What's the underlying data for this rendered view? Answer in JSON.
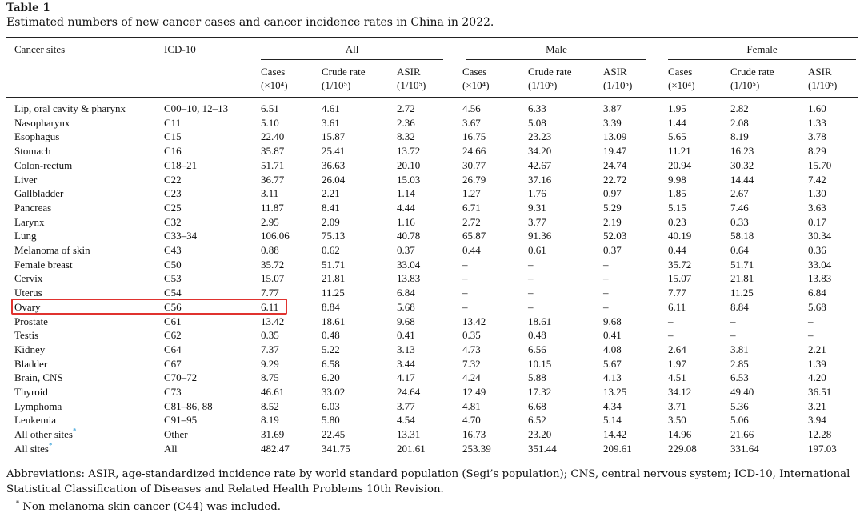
{
  "table": {
    "label": "Table 1",
    "caption": "Estimated numbers of new cancer cases and cancer incidence rates in China in 2022.",
    "col_site": "Cancer sites",
    "col_icd": "ICD-10",
    "groups": [
      "All",
      "Male",
      "Female"
    ],
    "sub_headers": [
      {
        "line1": "Cases",
        "line2": "(×10⁴)"
      },
      {
        "line1": "Crude rate",
        "line2": "(1/10⁵)"
      },
      {
        "line1": "ASIR",
        "line2": "(1/10⁵)"
      }
    ],
    "rows": [
      {
        "site": "Lip, oral cavity & pharynx",
        "icd": "C00–10, 12–13",
        "v": [
          "6.51",
          "4.61",
          "2.72",
          "4.56",
          "6.33",
          "3.87",
          "1.95",
          "2.82",
          "1.60"
        ]
      },
      {
        "site": "Nasopharynx",
        "icd": "C11",
        "v": [
          "5.10",
          "3.61",
          "2.36",
          "3.67",
          "5.08",
          "3.39",
          "1.44",
          "2.08",
          "1.33"
        ]
      },
      {
        "site": "Esophagus",
        "icd": "C15",
        "v": [
          "22.40",
          "15.87",
          "8.32",
          "16.75",
          "23.23",
          "13.09",
          "5.65",
          "8.19",
          "3.78"
        ]
      },
      {
        "site": "Stomach",
        "icd": "C16",
        "v": [
          "35.87",
          "25.41",
          "13.72",
          "24.66",
          "34.20",
          "19.47",
          "11.21",
          "16.23",
          "8.29"
        ]
      },
      {
        "site": "Colon-rectum",
        "icd": "C18–21",
        "v": [
          "51.71",
          "36.63",
          "20.10",
          "30.77",
          "42.67",
          "24.74",
          "20.94",
          "30.32",
          "15.70"
        ]
      },
      {
        "site": "Liver",
        "icd": "C22",
        "v": [
          "36.77",
          "26.04",
          "15.03",
          "26.79",
          "37.16",
          "22.72",
          "9.98",
          "14.44",
          "7.42"
        ]
      },
      {
        "site": "Gallbladder",
        "icd": "C23",
        "v": [
          "3.11",
          "2.21",
          "1.14",
          "1.27",
          "1.76",
          "0.97",
          "1.85",
          "2.67",
          "1.30"
        ]
      },
      {
        "site": "Pancreas",
        "icd": "C25",
        "v": [
          "11.87",
          "8.41",
          "4.44",
          "6.71",
          "9.31",
          "5.29",
          "5.15",
          "7.46",
          "3.63"
        ]
      },
      {
        "site": "Larynx",
        "icd": "C32",
        "v": [
          "2.95",
          "2.09",
          "1.16",
          "2.72",
          "3.77",
          "2.19",
          "0.23",
          "0.33",
          "0.17"
        ]
      },
      {
        "site": "Lung",
        "icd": "C33–34",
        "v": [
          "106.06",
          "75.13",
          "40.78",
          "65.87",
          "91.36",
          "52.03",
          "40.19",
          "58.18",
          "30.34"
        ]
      },
      {
        "site": "Melanoma of skin",
        "icd": "C43",
        "v": [
          "0.88",
          "0.62",
          "0.37",
          "0.44",
          "0.61",
          "0.37",
          "0.44",
          "0.64",
          "0.36"
        ]
      },
      {
        "site": "Female breast",
        "icd": "C50",
        "v": [
          "35.72",
          "51.71",
          "33.04",
          "–",
          "–",
          "–",
          "35.72",
          "51.71",
          "33.04"
        ]
      },
      {
        "site": "Cervix",
        "icd": "C53",
        "v": [
          "15.07",
          "21.81",
          "13.83",
          "–",
          "–",
          "–",
          "15.07",
          "21.81",
          "13.83"
        ]
      },
      {
        "site": "Uterus",
        "icd": "C54",
        "v": [
          "7.77",
          "11.25",
          "6.84",
          "–",
          "–",
          "–",
          "7.77",
          "11.25",
          "6.84"
        ]
      },
      {
        "site": "Ovary",
        "icd": "C56",
        "v": [
          "6.11",
          "8.84",
          "5.68",
          "–",
          "–",
          "–",
          "6.11",
          "8.84",
          "5.68"
        ]
      },
      {
        "site": "Prostate",
        "icd": "C61",
        "v": [
          "13.42",
          "18.61",
          "9.68",
          "13.42",
          "18.61",
          "9.68",
          "–",
          "–",
          "–"
        ]
      },
      {
        "site": "Testis",
        "icd": "C62",
        "v": [
          "0.35",
          "0.48",
          "0.41",
          "0.35",
          "0.48",
          "0.41",
          "–",
          "–",
          "–"
        ]
      },
      {
        "site": "Kidney",
        "icd": "C64",
        "v": [
          "7.37",
          "5.22",
          "3.13",
          "4.73",
          "6.56",
          "4.08",
          "2.64",
          "3.81",
          "2.21"
        ]
      },
      {
        "site": "Bladder",
        "icd": "C67",
        "v": [
          "9.29",
          "6.58",
          "3.44",
          "7.32",
          "10.15",
          "5.67",
          "1.97",
          "2.85",
          "1.39"
        ]
      },
      {
        "site": "Brain, CNS",
        "icd": "C70–72",
        "v": [
          "8.75",
          "6.20",
          "4.17",
          "4.24",
          "5.88",
          "4.13",
          "4.51",
          "6.53",
          "4.20"
        ]
      },
      {
        "site": "Thyroid",
        "icd": "C73",
        "v": [
          "46.61",
          "33.02",
          "24.64",
          "12.49",
          "17.32",
          "13.25",
          "34.12",
          "49.40",
          "36.51"
        ]
      },
      {
        "site": "Lymphoma",
        "icd": "C81–86, 88",
        "v": [
          "8.52",
          "6.03",
          "3.77",
          "4.81",
          "6.68",
          "4.34",
          "3.71",
          "5.36",
          "3.21"
        ]
      },
      {
        "site": "Leukemia",
        "icd": "C91–95",
        "v": [
          "8.19",
          "5.80",
          "4.54",
          "4.70",
          "6.52",
          "5.14",
          "3.50",
          "5.06",
          "3.94"
        ]
      },
      {
        "site": "All other sites",
        "icd": "Other",
        "v": [
          "31.69",
          "22.45",
          "13.31",
          "16.73",
          "23.20",
          "14.42",
          "14.96",
          "21.66",
          "12.28"
        ],
        "mark": "*"
      },
      {
        "site": "All sites",
        "icd": "All",
        "v": [
          "482.47",
          "341.75",
          "201.61",
          "253.39",
          "351.44",
          "209.61",
          "229.08",
          "331.64",
          "197.03"
        ],
        "mark": "*"
      }
    ],
    "highlighted_row": "Ovary",
    "highlight_color": "#e0332f",
    "footnote_mark_color": "#2a9ad6",
    "abbreviations": "Abbreviations: ASIR, age-standardized incidence rate by world standard population (Segi’s population); CNS, central nervous system; ICD-10, International Statistical Classification of Diseases and Related Health Problems 10th Revision.",
    "footnote_mark": "*",
    "footnote": "Non-melanoma skin cancer (C44) was included."
  }
}
